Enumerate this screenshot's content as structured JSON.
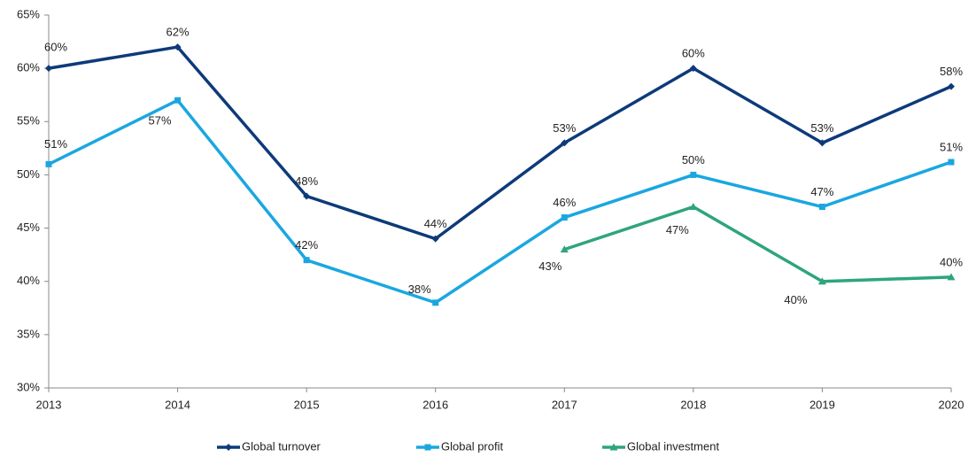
{
  "chart_data": {
    "type": "line",
    "categories": [
      "2013",
      "2014",
      "2015",
      "2016",
      "2017",
      "2018",
      "2019",
      "2020"
    ],
    "series": [
      {
        "name": "Global turnover",
        "color": "#0d3a7a",
        "marker": "diamond",
        "values": [
          60,
          62,
          48,
          44,
          53,
          60,
          53,
          58.3
        ],
        "value_labels": [
          "60%",
          "62%",
          "48%",
          "44%",
          "53%",
          "60%",
          "53%",
          "58%"
        ]
      },
      {
        "name": "Global profit",
        "color": "#1aa7e0",
        "marker": "square",
        "values": [
          51,
          57,
          42,
          38,
          46,
          50,
          47,
          51.2
        ],
        "value_labels": [
          "51%",
          "57%",
          "42%",
          "38%",
          "46%",
          "50%",
          "47%",
          "51%"
        ]
      },
      {
        "name": "Global investment",
        "color": "#2ea57a",
        "marker": "triangle",
        "values": [
          null,
          null,
          null,
          null,
          43,
          47,
          40,
          40.4
        ],
        "value_labels": [
          null,
          null,
          null,
          null,
          "43%",
          "47%",
          "40%",
          "40%"
        ]
      }
    ],
    "ylim": [
      30,
      65
    ],
    "yticks": [
      {
        "value": 30,
        "label": "30%"
      },
      {
        "value": 35,
        "label": "35%"
      },
      {
        "value": 40,
        "label": "40%"
      },
      {
        "value": 45,
        "label": "45%"
      },
      {
        "value": 50,
        "label": "50%"
      },
      {
        "value": 55,
        "label": "55%"
      },
      {
        "value": 60,
        "label": "60%"
      },
      {
        "value": 65,
        "label": "65%"
      }
    ],
    "grid": false,
    "legend": "bottom"
  }
}
